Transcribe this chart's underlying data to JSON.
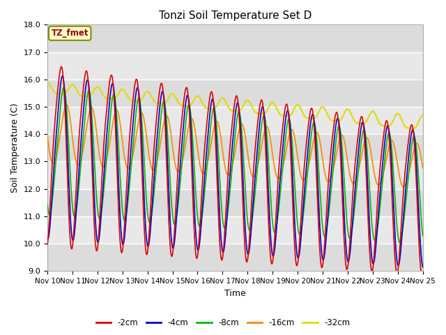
{
  "title": "Tonzi Soil Temperature Set D",
  "xlabel": "Time",
  "ylabel": "Soil Temperature (C)",
  "ylim": [
    9.0,
    18.0
  ],
  "yticks": [
    9.0,
    10.0,
    11.0,
    12.0,
    13.0,
    14.0,
    15.0,
    16.0,
    17.0,
    18.0
  ],
  "xtick_labels": [
    "Nov 10",
    "Nov 11",
    "Nov 12",
    "Nov 13",
    "Nov 14",
    "Nov 15",
    "Nov 16",
    "Nov 17",
    "Nov 18",
    "Nov 19",
    "Nov 20",
    "Nov 21",
    "Nov 22",
    "Nov 23",
    "Nov 24",
    "Nov 25"
  ],
  "colors": {
    "-2cm": "#dd0000",
    "-4cm": "#0000cc",
    "-8cm": "#00bb00",
    "-16cm": "#ff8800",
    "-32cm": "#dddd00"
  },
  "legend_labels": [
    "-2cm",
    "-4cm",
    "-8cm",
    "-16cm",
    "-32cm"
  ],
  "fig_bg": "#ffffff",
  "plot_bg_light": "#f0f0f0",
  "plot_bg_dark": "#dcdcdc",
  "annotation_text": "TZ_fmet",
  "annotation_bg": "#ffffcc",
  "annotation_border": "#888800",
  "grid_color": "#ffffff"
}
